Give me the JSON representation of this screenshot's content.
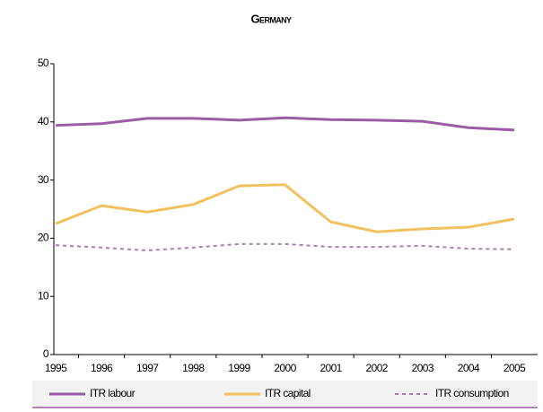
{
  "chart_data": {
    "type": "line",
    "title": "Germany",
    "categories": [
      "1995",
      "1996",
      "1997",
      "1998",
      "1999",
      "2000",
      "2001",
      "2002",
      "2003",
      "2004",
      "2005"
    ],
    "series": [
      {
        "name": "ITR labour",
        "color": "#9b5ca5",
        "dash": false,
        "values": [
          39.4,
          39.7,
          40.6,
          40.6,
          40.3,
          40.7,
          40.4,
          40.3,
          40.1,
          39.0,
          38.6
        ]
      },
      {
        "name": "ITR capital",
        "color": "#f2c15f",
        "dash": false,
        "values": [
          22.5,
          25.6,
          24.5,
          25.8,
          29.0,
          29.2,
          22.8,
          21.1,
          21.6,
          21.9,
          23.3
        ]
      },
      {
        "name": "ITR consumption",
        "color": "#b07ab8",
        "dash": true,
        "values": [
          18.8,
          18.4,
          17.9,
          18.4,
          19.0,
          19.0,
          18.5,
          18.5,
          18.7,
          18.2,
          18.1
        ]
      }
    ],
    "ylim": [
      0,
      50
    ],
    "yticks": [
      0,
      10,
      20,
      30,
      40,
      50
    ],
    "grid": false,
    "legend": "bottom"
  }
}
